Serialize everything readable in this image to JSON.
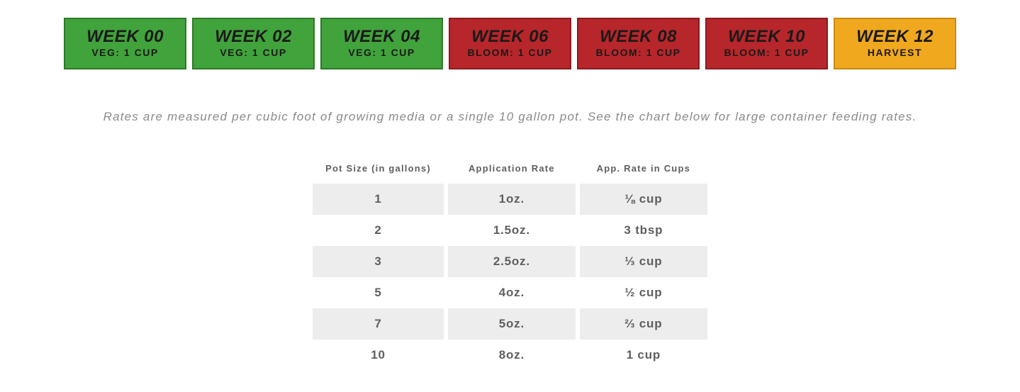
{
  "weeks": [
    {
      "title": "WEEK 00",
      "sub": "VEG: 1 CUP",
      "bg": "#41a33b",
      "border": "#2e7a29"
    },
    {
      "title": "WEEK 02",
      "sub": "VEG: 1 CUP",
      "bg": "#41a33b",
      "border": "#2e7a29"
    },
    {
      "title": "WEEK 04",
      "sub": "VEG: 1 CUP",
      "bg": "#41a33b",
      "border": "#2e7a29"
    },
    {
      "title": "WEEK 06",
      "sub": "BLOOM: 1 CUP",
      "bg": "#b7262a",
      "border": "#8c1b1f"
    },
    {
      "title": "WEEK 08",
      "sub": "BLOOM: 1 CUP",
      "bg": "#b7262a",
      "border": "#8c1b1f"
    },
    {
      "title": "WEEK 10",
      "sub": "BLOOM: 1 CUP",
      "bg": "#b7262a",
      "border": "#8c1b1f"
    },
    {
      "title": "WEEK 12",
      "sub": "HARVEST",
      "bg": "#f0a81f",
      "border": "#c98913"
    }
  ],
  "note": "Rates are measured per cubic foot of growing media or a single 10 gallon pot. See the chart below for large container feeding rates.",
  "rate_table": {
    "columns": [
      "Pot Size (in gallons)",
      "Application Rate",
      "App. Rate in Cups"
    ],
    "rows": [
      [
        "1",
        "1oz.",
        "⅛ cup"
      ],
      [
        "2",
        "1.5oz.",
        "3 tbsp"
      ],
      [
        "3",
        "2.5oz.",
        "⅓ cup"
      ],
      [
        "5",
        "4oz.",
        "½ cup"
      ],
      [
        "7",
        "5oz.",
        "⅔ cup"
      ],
      [
        "10",
        "8oz.",
        "1 cup"
      ]
    ],
    "header_fontsize": 13,
    "cell_fontsize": 17,
    "stripe_color": "#ededed",
    "text_color": "#5f5f5f"
  },
  "styling": {
    "page_bg": "#ffffff",
    "note_color": "#8a8a8a",
    "week_title_fontsize": 24,
    "week_sub_fontsize": 14
  }
}
